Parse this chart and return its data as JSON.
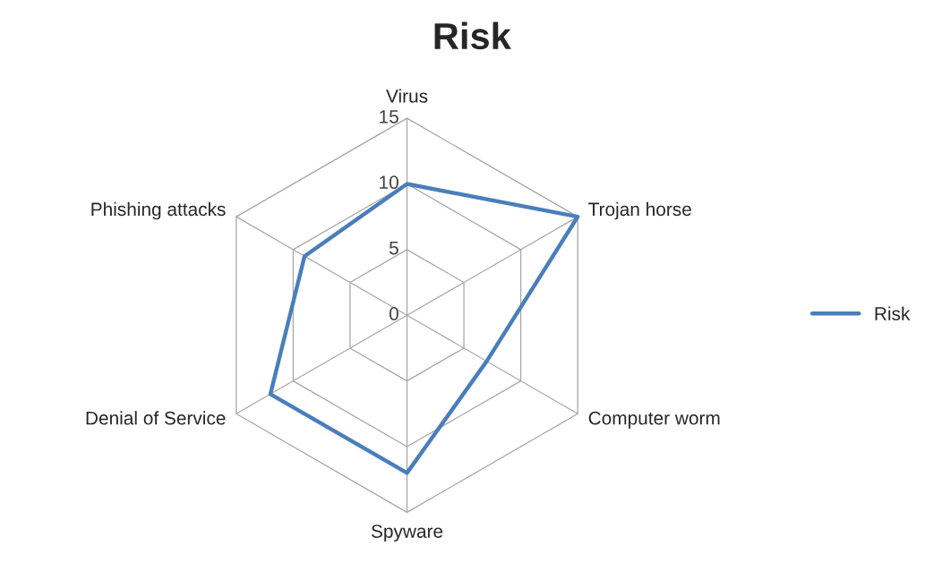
{
  "chart_data": {
    "type": "radar",
    "title": "Risk",
    "categories": [
      "Virus",
      "Trojan horse",
      "Computer worm",
      "Spyware",
      "Denial of Service",
      "Phishing attacks"
    ],
    "series": [
      {
        "name": "Risk",
        "color": "#4a7ebb",
        "values": [
          10,
          15,
          7,
          12,
          12,
          9
        ]
      }
    ],
    "ylim": [
      0,
      15
    ],
    "yticks": [
      0,
      5,
      10,
      15
    ],
    "grid": true,
    "legend": "right",
    "marker": "none",
    "line_style": "solid"
  }
}
